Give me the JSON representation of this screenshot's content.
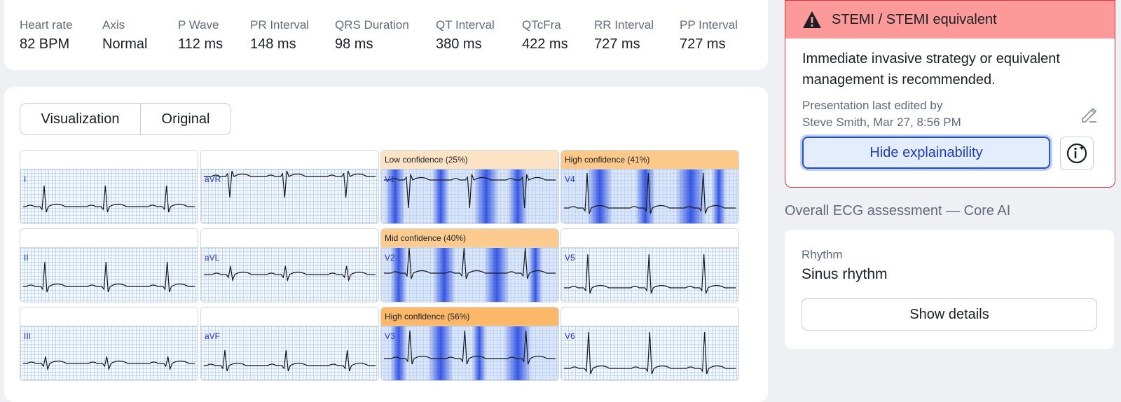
{
  "metrics": [
    {
      "label": "Heart rate",
      "value": "82 BPM"
    },
    {
      "label": "Axis",
      "value": "Normal"
    },
    {
      "label": "P Wave",
      "value": "112 ms"
    },
    {
      "label": "PR Interval",
      "value": "148 ms"
    },
    {
      "label": "QRS Duration",
      "value": "98 ms"
    },
    {
      "label": "QT Interval",
      "value": "380 ms"
    },
    {
      "label": "QTcFra",
      "value": "422 ms"
    },
    {
      "label": "RR Interval",
      "value": "727 ms"
    },
    {
      "label": "PP Interval",
      "value": "727 ms"
    }
  ],
  "view_toggle": {
    "visualization_label": "Visualization",
    "original_label": "Original",
    "selected": "Visualization"
  },
  "leads": [
    {
      "name": "I",
      "confidence": ""
    },
    {
      "name": "aVR",
      "confidence": ""
    },
    {
      "name": "V1",
      "confidence": "Low confidence (25%)"
    },
    {
      "name": "V4",
      "confidence": "High confidence (41%)"
    },
    {
      "name": "II",
      "confidence": ""
    },
    {
      "name": "aVL",
      "confidence": ""
    },
    {
      "name": "V2",
      "confidence": "Mid confidence (40%)"
    },
    {
      "name": "V5",
      "confidence": ""
    },
    {
      "name": "III",
      "confidence": ""
    },
    {
      "name": "aVF",
      "confidence": ""
    },
    {
      "name": "V3",
      "confidence": "High confidence (56%)"
    },
    {
      "name": "V6",
      "confidence": ""
    }
  ],
  "alert": {
    "icon": "warning-icon",
    "title": "STEMI / STEMI equivalent",
    "message": "Immediate invasive strategy or equivalent management is recommended.",
    "edited_line1": "Presentation last edited by",
    "edited_line2": "Steve Smith, Mar 27, 8:56 PM",
    "hide_button": "Hide explainability",
    "accent_color": "#e3353b",
    "header_color": "#fc9a9a"
  },
  "assessment": {
    "section_title": "Overall ECG assessment — Core AI",
    "rhythm_label": "Rhythm",
    "rhythm_value": "Sinus rhythm",
    "details_button": "Show details"
  }
}
